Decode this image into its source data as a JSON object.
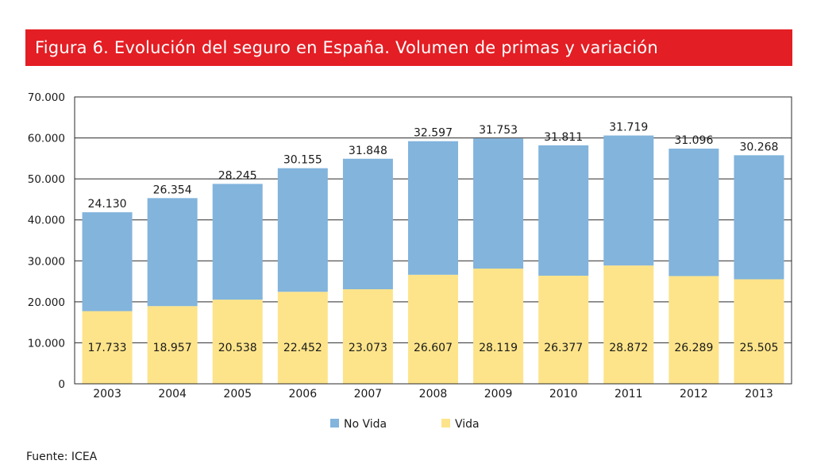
{
  "header": {
    "title": "Figura 6.  Evolución del seguro en España. Volumen de primas y variación"
  },
  "footer": {
    "source": "Fuente: ICEA"
  },
  "chart_data": {
    "type": "bar",
    "stacked": true,
    "title": "Figura 6.  Evolución del seguro en España. Volumen de primas y variación",
    "xlabel": "",
    "ylabel": "",
    "categories": [
      "2003",
      "2004",
      "2005",
      "2006",
      "2007",
      "2008",
      "2009",
      "2010",
      "2011",
      "2012",
      "2013"
    ],
    "series": [
      {
        "name": "Vida",
        "color": "#fde48a",
        "values": [
          17733,
          18957,
          20538,
          22452,
          23073,
          26607,
          28119,
          26377,
          28872,
          26289,
          25505
        ],
        "labels": [
          "17.733",
          "18.957",
          "20.538",
          "22.452",
          "23.073",
          "26.607",
          "28.119",
          "26.377",
          "28.872",
          "26.289",
          "25.505"
        ]
      },
      {
        "name": "No Vida",
        "color": "#82b4dc",
        "values": [
          24130,
          26354,
          28245,
          30155,
          31848,
          32597,
          31753,
          31811,
          31719,
          31096,
          30268
        ],
        "labels": [
          "24.130",
          "26.354",
          "28.245",
          "30.155",
          "31.848",
          "32.597",
          "31.753",
          "31.811",
          "31.719",
          "31.096",
          "30.268"
        ]
      }
    ],
    "legend_order": [
      "No Vida",
      "Vida"
    ],
    "legend_position": "bottom",
    "ylim": [
      0,
      70000
    ],
    "yticks": [
      0,
      10000,
      20000,
      30000,
      40000,
      50000,
      60000,
      70000
    ],
    "ytick_labels": [
      "0",
      "10.000",
      "20.000",
      "30.000",
      "40.000",
      "50.000",
      "60.000",
      "70.000"
    ],
    "grid": true
  }
}
